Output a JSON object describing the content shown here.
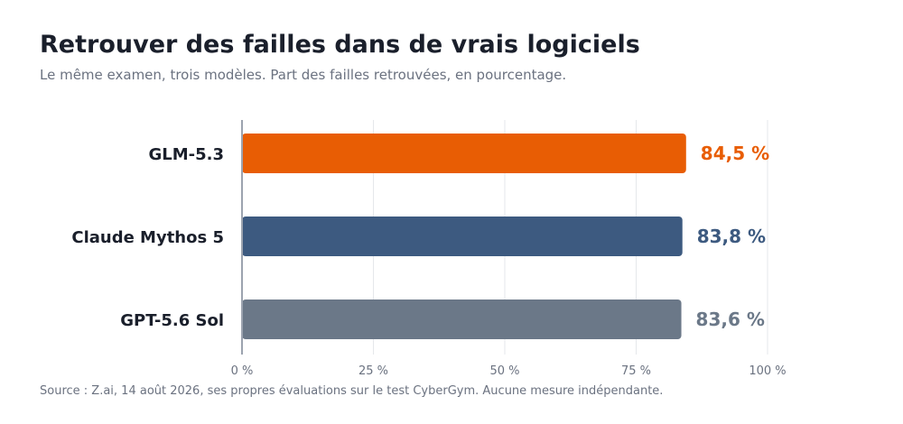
{
  "header": {
    "title": "Retrouver des failles dans de vrais logiciels",
    "subtitle": "Le même examen, trois modèles. Part des failles retrouvées, en pourcentage."
  },
  "footer": {
    "source": "Source : Z.ai, 14 août 2026, ses propres évaluations sur le test CyberGym. Aucune mesure indépendante."
  },
  "chart_data": {
    "type": "bar",
    "orientation": "horizontal",
    "categories": [
      "GLM-5.3",
      "Claude Mythos 5",
      "GPT-5.6 Sol"
    ],
    "values": [
      84.5,
      83.8,
      83.6
    ],
    "value_labels": [
      "84,5 %",
      "83,8 %",
      "83,6 %"
    ],
    "colors": [
      "#e85d04",
      "#3d5a80",
      "#6b7888"
    ],
    "xlim": [
      0,
      100
    ],
    "xticks": [
      0,
      25,
      50,
      75,
      100
    ],
    "xtick_labels": [
      "0 %",
      "25 %",
      "50 %",
      "75 %",
      "100 %"
    ],
    "grid": true,
    "legend": "none"
  }
}
